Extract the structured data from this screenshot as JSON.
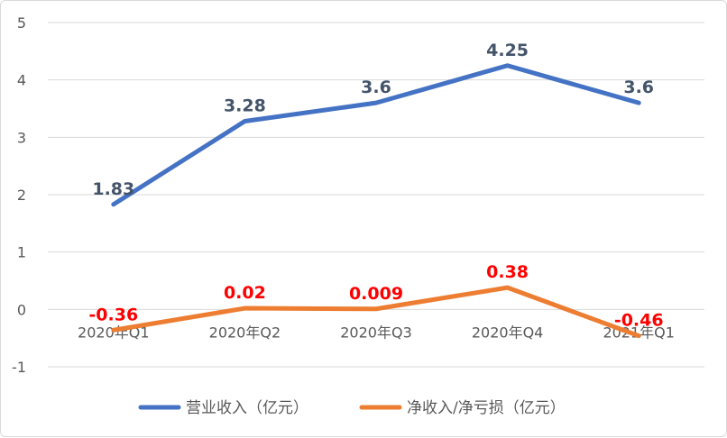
{
  "chart_data": {
    "type": "line",
    "categories": [
      "2020年Q1",
      "2020年Q2",
      "2020年Q3",
      "2020年Q4",
      "2021年Q1"
    ],
    "series": [
      {
        "name": "营业收入（亿元）",
        "color": "#4472c4",
        "label_color": "#44546a",
        "values": [
          1.83,
          3.28,
          3.6,
          4.25,
          3.6
        ],
        "labels": [
          "1.83",
          "3.28",
          "3.6",
          "4.25",
          "3.6"
        ]
      },
      {
        "name": "净收入/净亏损（亿元）",
        "color": "#ed7d31",
        "label_color": "#ff0000",
        "values": [
          -0.36,
          0.02,
          0.009,
          0.38,
          -0.46
        ],
        "labels": [
          "-0.36",
          "0.02",
          "0.009",
          "0.38",
          "-0.46"
        ]
      }
    ],
    "ylim": [
      -1,
      5
    ],
    "yticks": [
      "5",
      "4",
      "3",
      "2",
      "1",
      "0",
      "-1"
    ],
    "grid": true,
    "legend": "bottom"
  }
}
